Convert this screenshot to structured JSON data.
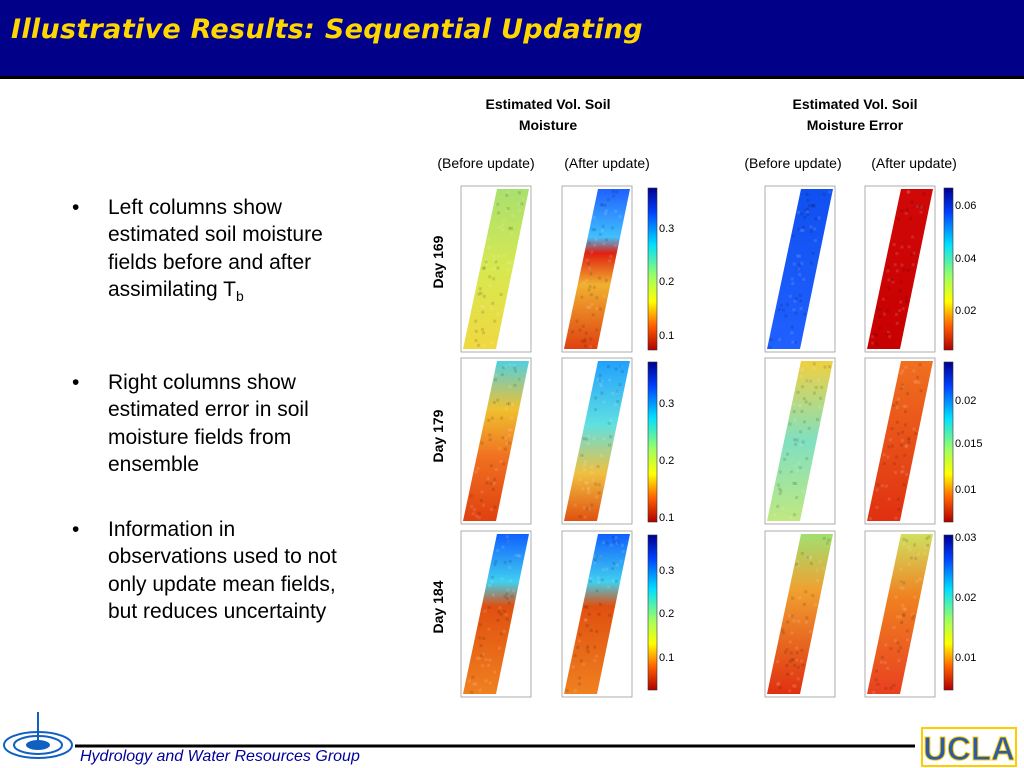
{
  "header": {
    "title": "Illustrative Results: Sequential Updating"
  },
  "bullets": [
    {
      "text": "Left columns show estimated soil moisture fields before and after assimilating T",
      "sub": "b"
    },
    {
      "text": "Right columns show estimated error in soil moisture fields from ensemble"
    },
    {
      "text": "Information in observations used to not only update mean fields, but reduces uncertainty"
    }
  ],
  "figure": {
    "column_groups": [
      {
        "title": "Estimated Vol. Soil Moisture",
        "columns": [
          "(Before update)",
          "(After update)"
        ]
      },
      {
        "title": "Estimated Vol. Soil Moisture Error",
        "columns": [
          "(Before update)",
          "(After update)"
        ]
      }
    ],
    "rows": [
      {
        "label": "Day 169",
        "moisture_colorbar": [
          "0.3",
          "0.2",
          "0.1"
        ],
        "error_colorbar": [
          "0.06",
          "0.04",
          "0.02"
        ]
      },
      {
        "label": "Day 179",
        "moisture_colorbar": [
          "0.3",
          "0.2",
          "0.1"
        ],
        "error_colorbar": [
          "0.02",
          "0.015",
          "0.01"
        ]
      },
      {
        "label": "Day 184",
        "moisture_colorbar": [
          "0.3",
          "0.2",
          "0.1"
        ],
        "error_colorbar": [
          "0.03",
          "0.02",
          "0.01"
        ]
      }
    ]
  },
  "footer": {
    "group": "Hydrology and Water Resources Group",
    "logo": "UCLA"
  }
}
